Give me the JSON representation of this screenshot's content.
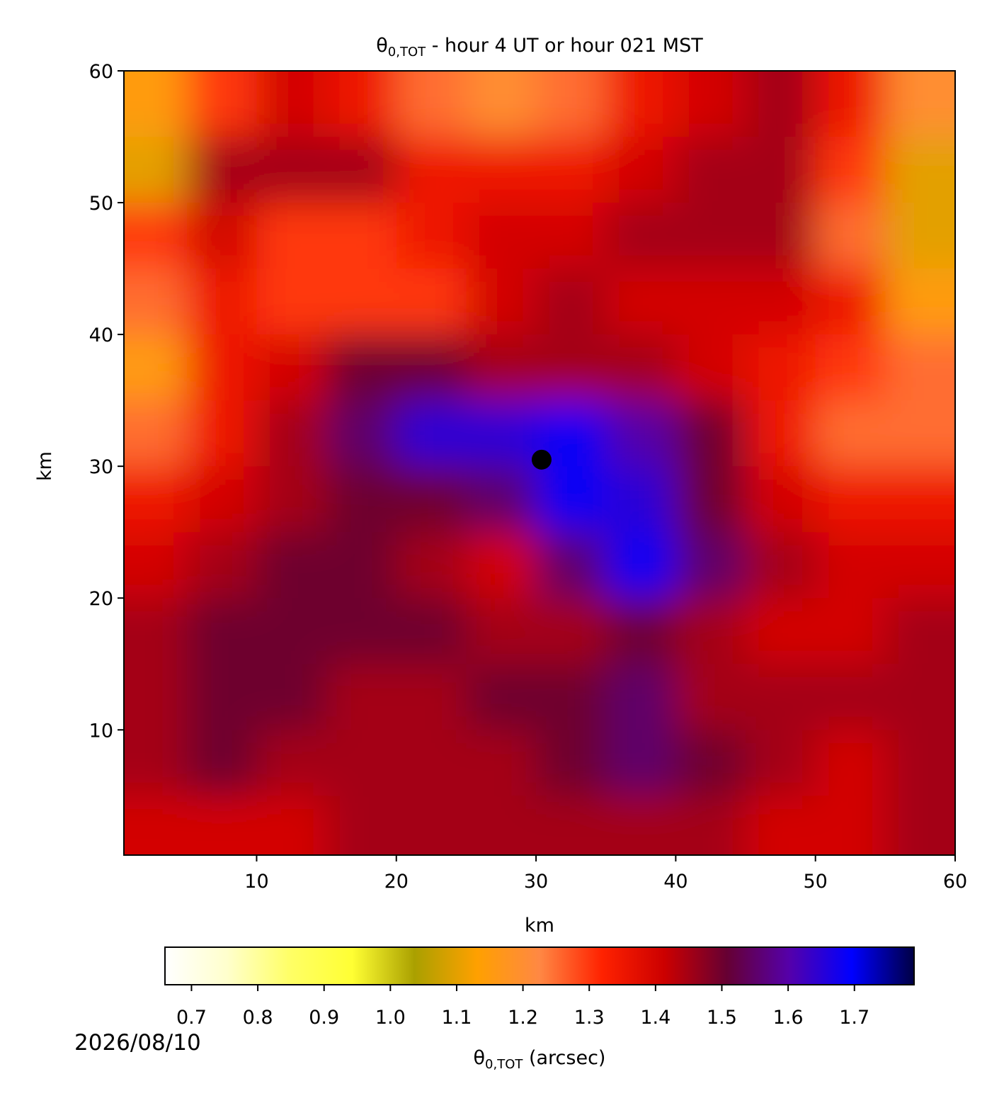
{
  "chart_data": {
    "type": "heatmap",
    "title": {
      "symbol": "θ",
      "subscript": "0,TOT",
      "text": " - hour 4 UT or hour 021 MST"
    },
    "x_label": "km",
    "y_label": "km",
    "xlim": [
      0.5,
      60
    ],
    "ylim": [
      0.5,
      60
    ],
    "xticks": [
      10,
      20,
      30,
      40,
      50,
      60
    ],
    "yticks": [
      10,
      20,
      30,
      40,
      50,
      60
    ],
    "x": [
      2.5,
      7.5,
      12.5,
      17.5,
      22.5,
      27.5,
      32.5,
      37.5,
      42.5,
      47.5,
      52.5,
      57.5
    ],
    "y": [
      57.5,
      52.5,
      47.5,
      42.5,
      37.5,
      32.5,
      27.5,
      22.5,
      17.5,
      12.5,
      7.5,
      2.5
    ],
    "z": [
      [
        1.15,
        1.3,
        1.4,
        1.35,
        1.25,
        1.2,
        1.25,
        1.35,
        1.4,
        1.45,
        1.35,
        1.2
      ],
      [
        1.1,
        1.45,
        1.45,
        1.45,
        1.35,
        1.35,
        1.35,
        1.4,
        1.45,
        1.45,
        1.3,
        1.1
      ],
      [
        1.3,
        1.4,
        1.3,
        1.3,
        1.35,
        1.4,
        1.4,
        1.45,
        1.45,
        1.45,
        1.25,
        1.1
      ],
      [
        1.25,
        1.35,
        1.3,
        1.3,
        1.3,
        1.4,
        1.45,
        1.4,
        1.4,
        1.4,
        1.35,
        1.15
      ],
      [
        1.15,
        1.35,
        1.4,
        1.5,
        1.5,
        1.45,
        1.45,
        1.45,
        1.4,
        1.35,
        1.3,
        1.25
      ],
      [
        1.25,
        1.35,
        1.45,
        1.55,
        1.65,
        1.65,
        1.7,
        1.6,
        1.5,
        1.35,
        1.25,
        1.25
      ],
      [
        1.35,
        1.4,
        1.45,
        1.5,
        1.5,
        1.55,
        1.7,
        1.65,
        1.5,
        1.4,
        1.35,
        1.35
      ],
      [
        1.4,
        1.45,
        1.5,
        1.5,
        1.45,
        1.4,
        1.55,
        1.7,
        1.55,
        1.45,
        1.4,
        1.4
      ],
      [
        1.45,
        1.5,
        1.5,
        1.5,
        1.5,
        1.45,
        1.45,
        1.5,
        1.45,
        1.4,
        1.4,
        1.45
      ],
      [
        1.45,
        1.5,
        1.5,
        1.45,
        1.45,
        1.5,
        1.5,
        1.55,
        1.45,
        1.45,
        1.45,
        1.45
      ],
      [
        1.45,
        1.5,
        1.45,
        1.45,
        1.45,
        1.45,
        1.5,
        1.55,
        1.5,
        1.45,
        1.4,
        1.45
      ],
      [
        1.4,
        1.4,
        1.4,
        1.45,
        1.45,
        1.45,
        1.45,
        1.45,
        1.45,
        1.4,
        1.4,
        1.45
      ]
    ],
    "marker": {
      "x": 30.4,
      "y": 30.5,
      "color": "#000000"
    },
    "colormap": [
      "#ffffff",
      "#ffffcc",
      "#ffff66",
      "#ffff33",
      "#aaa000",
      "#ffa000",
      "#ff8844",
      "#ff2200",
      "#cc0000",
      "#660033",
      "#5500aa",
      "#0000ff",
      "#000044"
    ],
    "clim": [
      0.66,
      1.79
    ],
    "colorbar_ticks": [
      0.7,
      0.8,
      0.9,
      {
        "value": 1,
        "label": "1.0"
      },
      1.1,
      1.2,
      1.3,
      1.4,
      1.5,
      1.6,
      1.7
    ],
    "colorbar_label": {
      "symbol": "θ",
      "subscript": "0,TOT",
      "unit": " (arcsec)"
    },
    "footer_text": "2026/08/10"
  }
}
